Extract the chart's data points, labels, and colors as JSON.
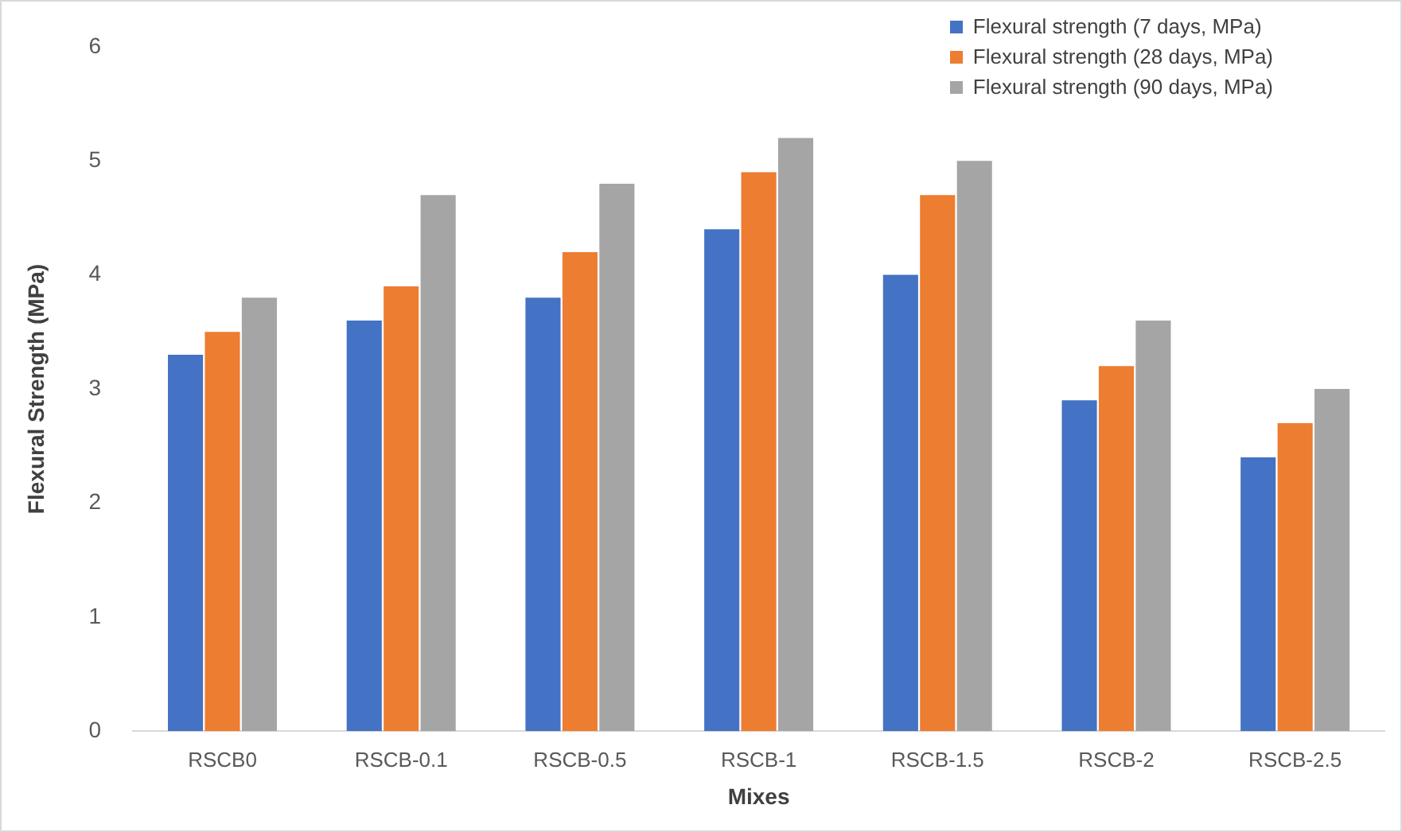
{
  "chart_data": {
    "type": "bar",
    "xlabel": "Mixes",
    "ylabel": "Flexural Strength (MPa)",
    "categories": [
      "RSCB0",
      "RSCB-0.1",
      "RSCB-0.5",
      "RSCB-1",
      "RSCB-1.5",
      "RSCB-2",
      "RSCB-2.5"
    ],
    "series": [
      {
        "name": "Flexural strength (7 days, MPa)",
        "color": "#4472c4",
        "values": [
          3.3,
          3.6,
          3.8,
          4.4,
          4.0,
          2.9,
          2.4
        ]
      },
      {
        "name": "Flexural strength (28 days, MPa)",
        "color": "#ed7d31",
        "values": [
          3.5,
          3.9,
          4.2,
          4.9,
          4.7,
          3.2,
          2.7
        ]
      },
      {
        "name": "Flexural strength (90 days, MPa)",
        "color": "#a5a5a5",
        "values": [
          3.8,
          4.7,
          4.8,
          5.2,
          5.0,
          3.6,
          3.0
        ]
      }
    ],
    "ylim": [
      0,
      6
    ],
    "yticks": [
      0,
      1,
      2,
      3,
      4,
      5,
      6
    ],
    "grid": false,
    "legend": "top right"
  }
}
